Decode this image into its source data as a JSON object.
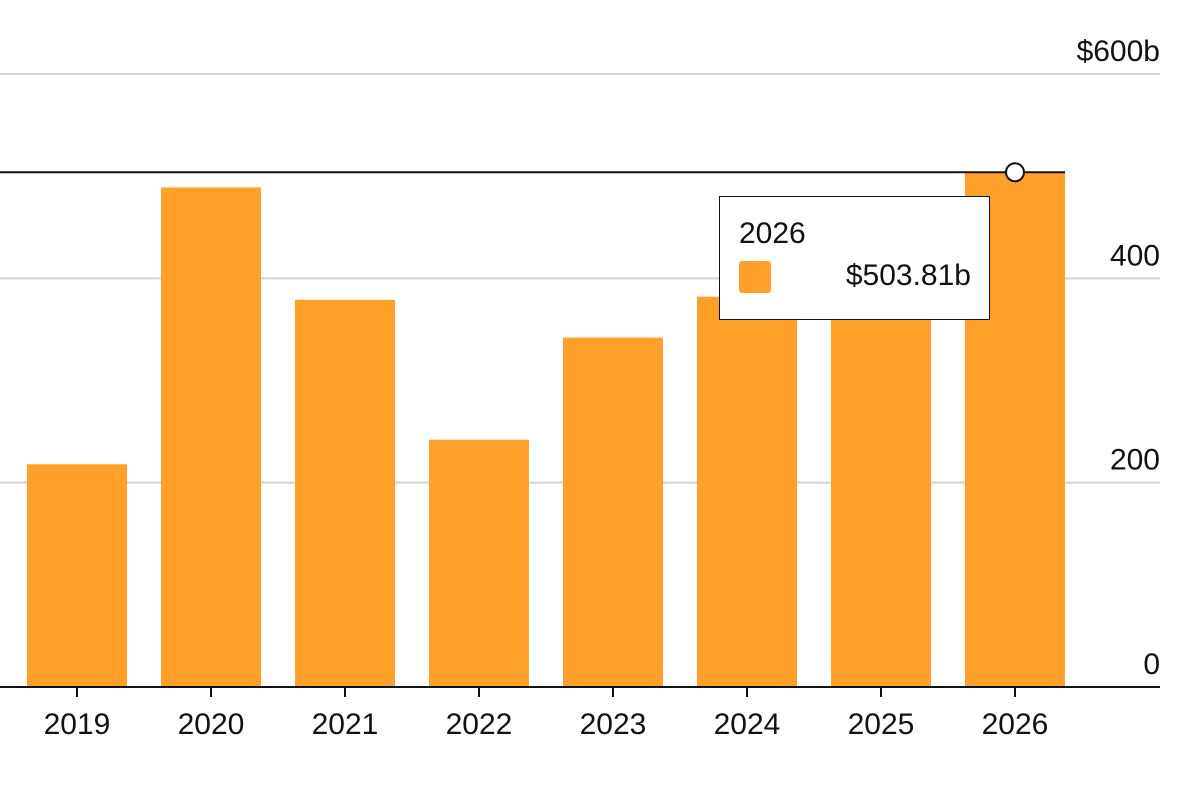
{
  "chart_data": {
    "type": "bar",
    "categories": [
      "2019",
      "2020",
      "2021",
      "2022",
      "2023",
      "2024",
      "2025",
      "2026"
    ],
    "values": [
      218,
      489,
      379,
      242,
      342,
      382,
      400,
      503.81
    ],
    "ylim": [
      0,
      600
    ],
    "y_ticks": [
      {
        "value": 0,
        "label": "0"
      },
      {
        "value": 200,
        "label": "200"
      },
      {
        "value": 400,
        "label": "400"
      },
      {
        "value": 600,
        "label": "$600b"
      }
    ],
    "y_axis_side": "right",
    "grid": true,
    "reference_line": 503.81,
    "bar_color": "#ffa02a",
    "highlight_category": "2026"
  },
  "tooltip": {
    "title": "2026",
    "value": "$503.81b",
    "swatch_color": "#ffa02a"
  }
}
